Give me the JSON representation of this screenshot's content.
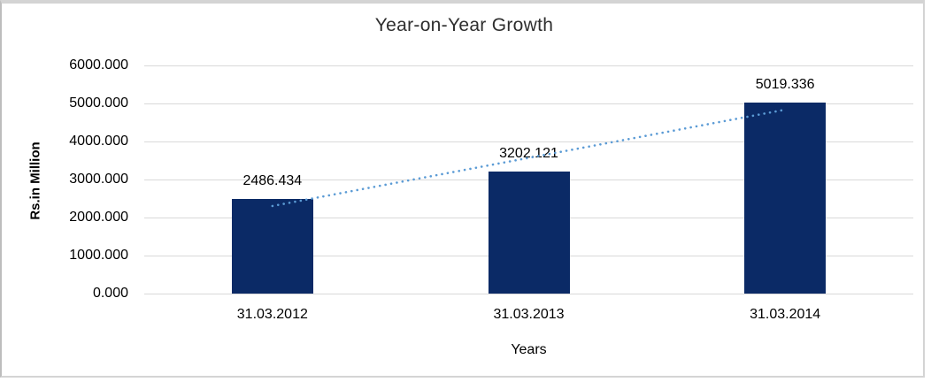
{
  "window": {
    "frame_border_color": "#d4d4d4"
  },
  "chart_data": {
    "type": "bar",
    "title": "Year-on-Year Growth",
    "xlabel": "Years",
    "ylabel": "Rs.in Million",
    "categories": [
      "31.03.2012",
      "31.03.2013",
      "31.03.2014"
    ],
    "values": [
      2486.434,
      3202.121,
      5019.336
    ],
    "data_labels": [
      "2486.434",
      "3202.121",
      "5019.336"
    ],
    "yticks": [
      "0.000",
      "1000.000",
      "2000.000",
      "3000.000",
      "4000.000",
      "5000.000",
      "6000.000"
    ],
    "ytick_values": [
      0,
      1000,
      2000,
      3000,
      4000,
      5000,
      6000
    ],
    "ylim": [
      0,
      6000
    ],
    "grid": true,
    "legend": "none",
    "colors": {
      "bar": "#0b2a66",
      "trendline": "#5b9bd5",
      "gridline": "#d9d9d9",
      "title_text": "#2e2e2e",
      "tick_text": "#000000"
    },
    "trendline": {
      "type": "linear",
      "style": "dotted"
    }
  }
}
